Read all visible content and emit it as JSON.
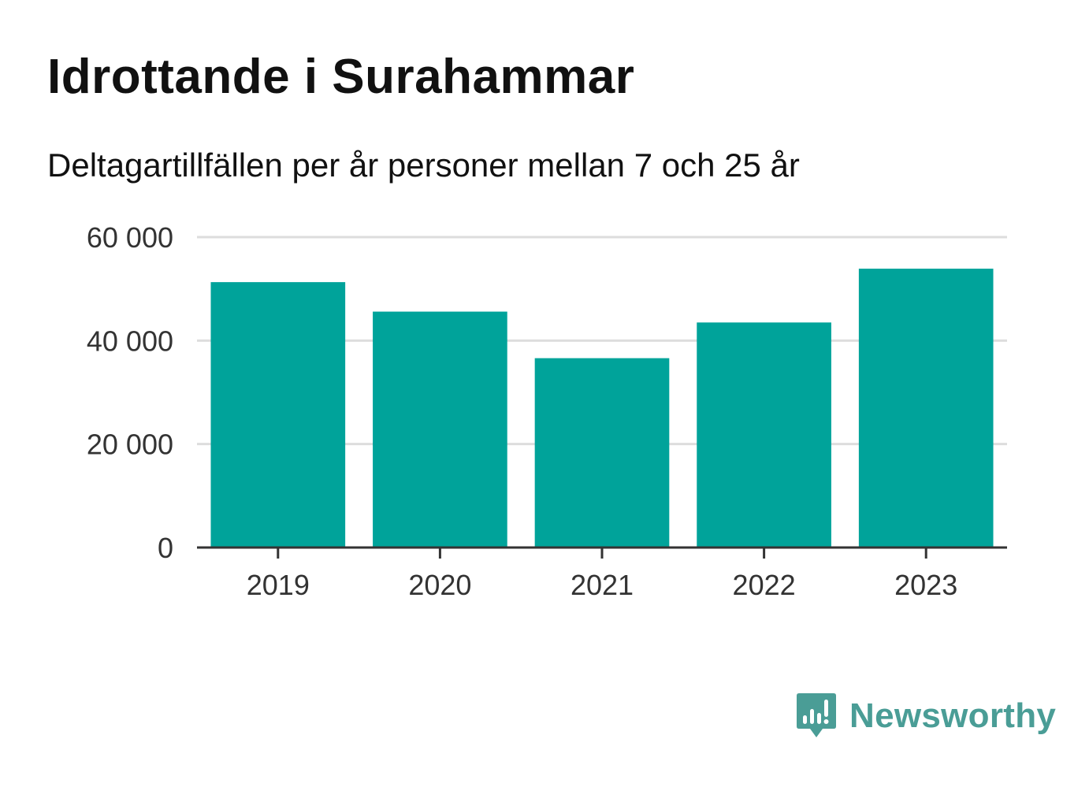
{
  "header": {
    "title": "Idrottande i Surahammar",
    "subtitle": "Deltagartillfällen per år personer mellan 7 och 25 år"
  },
  "chart_data": {
    "type": "bar",
    "categories": [
      "2019",
      "2020",
      "2021",
      "2022",
      "2023"
    ],
    "values": [
      51300,
      45600,
      36600,
      43500,
      53900
    ],
    "ylim": [
      0,
      60000
    ],
    "yticks": [
      0,
      20000,
      40000,
      60000
    ],
    "ytick_labels": [
      "0",
      "20 000",
      "40 000",
      "60 000"
    ],
    "grid": true,
    "bar_color": "#00a39a",
    "xlabel": "",
    "ylabel": ""
  },
  "brand": {
    "name": "Newsworthy",
    "icon": "newsworthy-logo-icon",
    "color": "#4a9d96"
  }
}
